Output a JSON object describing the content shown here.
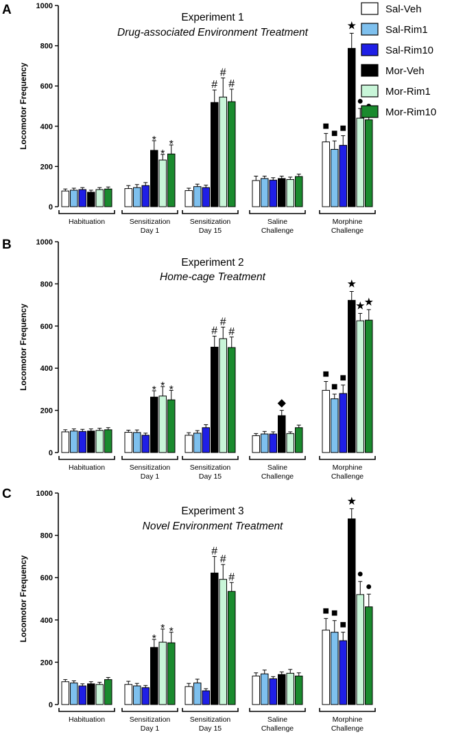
{
  "chart_data": [
    {
      "type": "bar",
      "panel": "A",
      "title": "Experiment 1",
      "subtitle": "Drug-associated Environment Treatment",
      "ylabel": "Locomotor Frequency",
      "ylim": [
        0,
        1000
      ],
      "yticks": [
        "0",
        "200",
        "400",
        "600",
        "800",
        "1000"
      ],
      "groups": [
        {
          "line1": "Habituation",
          "line2": "",
          "values": [
            78,
            82,
            85,
            72,
            85,
            88
          ],
          "errors": [
            10,
            10,
            10,
            10,
            10,
            10
          ],
          "marks": [
            "",
            "",
            "",
            "",
            "",
            ""
          ]
        },
        {
          "line1": "Sensitization",
          "line2": "Day 1",
          "values": [
            90,
            95,
            105,
            280,
            232,
            262
          ],
          "errors": [
            15,
            15,
            15,
            48,
            28,
            45
          ],
          "marks": [
            "",
            "",
            "",
            "*",
            "*",
            "*"
          ]
        },
        {
          "line1": "Sensitization",
          "line2": "Day 15",
          "values": [
            80,
            100,
            95,
            518,
            545,
            522
          ],
          "errors": [
            12,
            12,
            12,
            62,
            95,
            62
          ],
          "marks": [
            "",
            "",
            "",
            "#",
            "#",
            "#"
          ]
        },
        {
          "line1": "Saline",
          "line2": "Challenge",
          "values": [
            130,
            140,
            132,
            140,
            135,
            150
          ],
          "errors": [
            22,
            12,
            12,
            12,
            12,
            12
          ],
          "marks": [
            "",
            "",
            "",
            "",
            "",
            ""
          ]
        },
        {
          "line1": "Morphine",
          "line2": "Challenge",
          "values": [
            322,
            285,
            305,
            787,
            440,
            432
          ],
          "errors": [
            42,
            42,
            48,
            75,
            48,
            33
          ],
          "marks": [
            "■",
            "■",
            "■",
            "★",
            "●",
            "●"
          ]
        }
      ]
    },
    {
      "type": "bar",
      "panel": "B",
      "title": "Experiment 2",
      "subtitle": "Home-cage Treatment",
      "ylabel": "Locomotor Frequency",
      "ylim": [
        0,
        1000
      ],
      "yticks": [
        "0",
        "200",
        "400",
        "600",
        "800",
        "1000"
      ],
      "groups": [
        {
          "line1": "Habituation",
          "line2": "",
          "values": [
            98,
            102,
            100,
            102,
            105,
            108
          ],
          "errors": [
            10,
            10,
            10,
            10,
            10,
            10
          ],
          "marks": [
            "",
            "",
            "",
            "",
            "",
            ""
          ]
        },
        {
          "line1": "Sensitization",
          "line2": "Day 1",
          "values": [
            96,
            95,
            82,
            263,
            268,
            250
          ],
          "errors": [
            10,
            12,
            10,
            30,
            45,
            45
          ],
          "marks": [
            "",
            "",
            "",
            "*",
            "*",
            "*"
          ]
        },
        {
          "line1": "Sensitization",
          "line2": "Day 15",
          "values": [
            82,
            92,
            118,
            500,
            540,
            498
          ],
          "errors": [
            12,
            12,
            14,
            52,
            55,
            50
          ],
          "marks": [
            "",
            "",
            "",
            "#",
            "#",
            "#"
          ]
        },
        {
          "line1": "Saline",
          "line2": "Challenge",
          "values": [
            80,
            88,
            88,
            175,
            90,
            118
          ],
          "errors": [
            10,
            12,
            10,
            25,
            8,
            12
          ],
          "marks": [
            "",
            "",
            "",
            "◆",
            "",
            ""
          ]
        },
        {
          "line1": "Morphine",
          "line2": "Challenge",
          "values": [
            295,
            255,
            280,
            722,
            625,
            628
          ],
          "errors": [
            42,
            22,
            40,
            42,
            35,
            50
          ],
          "marks": [
            "■",
            "■",
            "■",
            "★",
            "★",
            "★"
          ]
        }
      ]
    },
    {
      "type": "bar",
      "panel": "C",
      "title": "Experiment 3",
      "subtitle": "Novel Environment Treatment",
      "ylabel": "Locomotor Frequency",
      "ylim": [
        0,
        1000
      ],
      "yticks": [
        "0",
        "200",
        "400",
        "600",
        "800",
        "1000"
      ],
      "groups": [
        {
          "line1": "Habituation",
          "line2": "",
          "values": [
            108,
            102,
            88,
            98,
            95,
            118
          ],
          "errors": [
            10,
            10,
            10,
            10,
            10,
            10
          ],
          "marks": [
            "",
            "",
            "",
            "",
            "",
            ""
          ]
        },
        {
          "line1": "Sensitization",
          "line2": "Day 1",
          "values": [
            95,
            88,
            80,
            270,
            295,
            292
          ],
          "errors": [
            15,
            12,
            10,
            38,
            62,
            50
          ],
          "marks": [
            "",
            "",
            "",
            "*",
            "*",
            "*"
          ]
        },
        {
          "line1": "Sensitization",
          "line2": "Day 15",
          "values": [
            85,
            102,
            65,
            622,
            592,
            535
          ],
          "errors": [
            15,
            18,
            10,
            78,
            70,
            42
          ],
          "marks": [
            "",
            "",
            "",
            "#",
            "#",
            "#"
          ]
        },
        {
          "line1": "Saline",
          "line2": "Challenge",
          "values": [
            135,
            145,
            122,
            142,
            148,
            135
          ],
          "errors": [
            15,
            18,
            10,
            12,
            18,
            15
          ],
          "marks": [
            "",
            "",
            "",
            "",
            "",
            ""
          ]
        },
        {
          "line1": "Morphine",
          "line2": "Challenge",
          "values": [
            352,
            342,
            302,
            878,
            520,
            462
          ],
          "errors": [
            55,
            55,
            40,
            48,
            62,
            60
          ],
          "marks": [
            "■",
            "■",
            "■",
            "★",
            "●",
            "●"
          ]
        }
      ]
    }
  ],
  "legend": [
    {
      "name": "Sal-Veh",
      "color": "#ffffff"
    },
    {
      "name": "Sal-Rim1",
      "color": "#7ec0ee"
    },
    {
      "name": "Sal-Rim10",
      "color": "#1f1fe6"
    },
    {
      "name": "Mor-Veh",
      "color": "#000000"
    },
    {
      "name": "Mor-Rim1",
      "color": "#c8f5d8"
    },
    {
      "name": "Mor-Rim10",
      "color": "#1a8a2e"
    }
  ]
}
